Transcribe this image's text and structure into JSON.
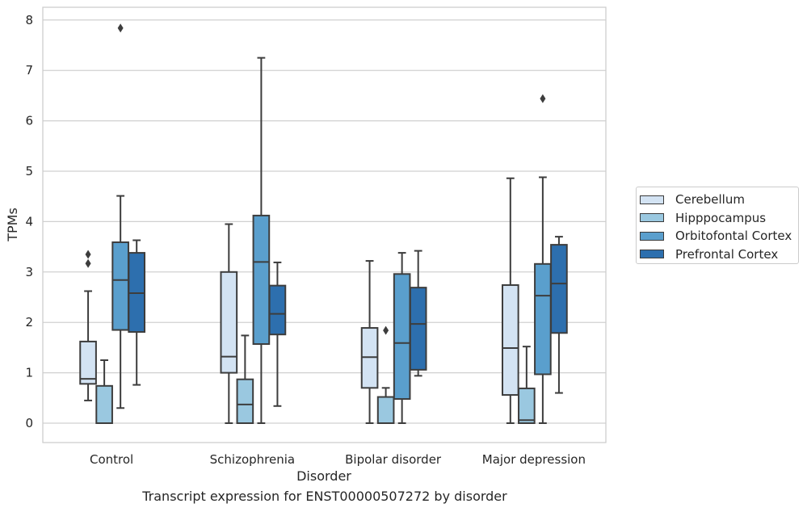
{
  "chart_data": {
    "type": "box",
    "title": "Transcript expression for ENST00000507272 by disorder",
    "xlabel": "Disorder",
    "ylabel": "TPMs",
    "ylim": [
      -0.38,
      8.22
    ],
    "yticks": [
      "0",
      "1",
      "2",
      "3",
      "4",
      "5",
      "6",
      "7",
      "8"
    ],
    "categories": [
      "Control",
      "Schizophrenia",
      "Bipolar disorder",
      "Major depression"
    ],
    "grid": true,
    "legend_position": "right",
    "series": [
      {
        "name": "Cerebellum",
        "color": "#d3e3f3",
        "boxes": [
          {
            "whislo": 0.45,
            "q1": 0.78,
            "med": 0.88,
            "q3": 1.62,
            "whishi": 2.62,
            "fliers": [
              3.17,
              3.35
            ]
          },
          {
            "whislo": 0.0,
            "q1": 1.0,
            "med": 1.32,
            "q3": 3.0,
            "whishi": 3.95,
            "fliers": []
          },
          {
            "whislo": 0.0,
            "q1": 0.7,
            "med": 1.31,
            "q3": 1.89,
            "whishi": 3.22,
            "fliers": []
          },
          {
            "whislo": 0.0,
            "q1": 0.56,
            "med": 1.49,
            "q3": 2.74,
            "whishi": 4.86,
            "fliers": []
          }
        ]
      },
      {
        "name": "Hipppocampus",
        "color": "#9ac8e0",
        "boxes": [
          {
            "whislo": 0.0,
            "q1": 0.0,
            "med": 0.0,
            "q3": 0.74,
            "whishi": 1.25,
            "fliers": []
          },
          {
            "whislo": 0.0,
            "q1": 0.0,
            "med": 0.37,
            "q3": 0.87,
            "whishi": 1.74,
            "fliers": []
          },
          {
            "whislo": 0.0,
            "q1": 0.0,
            "med": 0.0,
            "q3": 0.52,
            "whishi": 0.7,
            "fliers": [
              1.84
            ]
          },
          {
            "whislo": 0.0,
            "q1": 0.0,
            "med": 0.06,
            "q3": 0.69,
            "whishi": 1.52,
            "fliers": []
          }
        ]
      },
      {
        "name": "Orbitofontal Cortex",
        "color": "#5a9fcd",
        "boxes": [
          {
            "whislo": 0.3,
            "q1": 1.85,
            "med": 2.84,
            "q3": 3.59,
            "whishi": 4.51,
            "fliers": [
              7.84
            ]
          },
          {
            "whislo": 0.0,
            "q1": 1.57,
            "med": 3.2,
            "q3": 4.12,
            "whishi": 7.25,
            "fliers": []
          },
          {
            "whislo": 0.0,
            "q1": 0.48,
            "med": 1.59,
            "q3": 2.96,
            "whishi": 3.38,
            "fliers": []
          },
          {
            "whislo": 0.0,
            "q1": 0.97,
            "med": 2.53,
            "q3": 3.16,
            "whishi": 4.88,
            "fliers": [
              6.44
            ]
          }
        ]
      },
      {
        "name": "Prefrontal Cortex",
        "color": "#2d6fae",
        "boxes": [
          {
            "whislo": 0.76,
            "q1": 1.81,
            "med": 2.58,
            "q3": 3.38,
            "whishi": 3.63,
            "fliers": []
          },
          {
            "whislo": 0.34,
            "q1": 1.76,
            "med": 2.17,
            "q3": 2.73,
            "whishi": 3.19,
            "fliers": []
          },
          {
            "whislo": 0.94,
            "q1": 1.06,
            "med": 1.97,
            "q3": 2.69,
            "whishi": 3.42,
            "fliers": []
          },
          {
            "whislo": 0.6,
            "q1": 1.79,
            "med": 2.77,
            "q3": 3.54,
            "whishi": 3.7,
            "fliers": []
          }
        ]
      }
    ]
  }
}
